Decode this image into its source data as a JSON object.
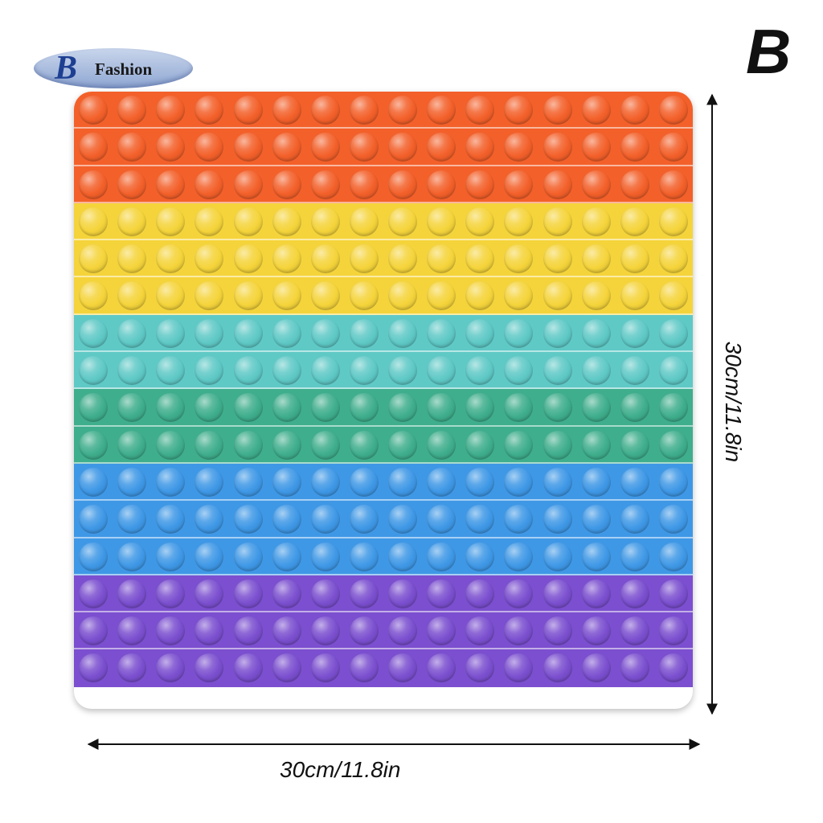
{
  "logo": {
    "letter": "B",
    "text": "Fashion"
  },
  "variant_label": "B",
  "dimensions": {
    "width": "30cm/11.8in",
    "height": "30cm/11.8in"
  },
  "board": {
    "columns": 16,
    "rows": [
      {
        "color": "#f3602a"
      },
      {
        "color": "#f3602a"
      },
      {
        "color": "#f3602a"
      },
      {
        "color": "#f5d43b"
      },
      {
        "color": "#f5d43b"
      },
      {
        "color": "#f5d43b"
      },
      {
        "color": "#5fc9c6"
      },
      {
        "color": "#5fc9c6"
      },
      {
        "color": "#3fae8c"
      },
      {
        "color": "#3fae8c"
      },
      {
        "color": "#3f98e6"
      },
      {
        "color": "#3f98e6"
      },
      {
        "color": "#3f98e6"
      },
      {
        "color": "#7b4fcf"
      },
      {
        "color": "#7b4fcf"
      },
      {
        "color": "#7b4fcf"
      }
    ]
  }
}
